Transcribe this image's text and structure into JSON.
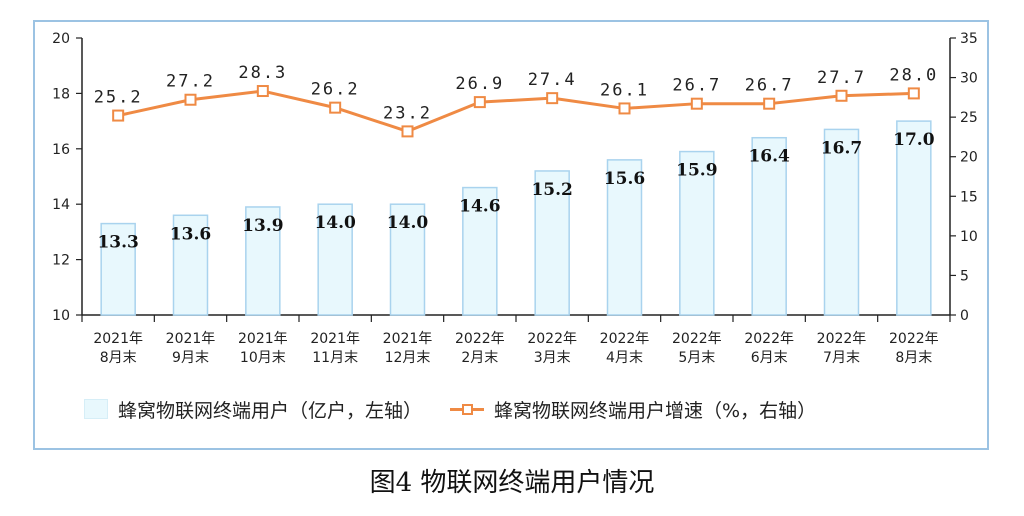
{
  "chart_data": {
    "type": "bar+line",
    "title": "图4 物联网终端用户情况",
    "categories": [
      [
        "2021年",
        "8月末"
      ],
      [
        "2021年",
        "9月末"
      ],
      [
        "2021年",
        "10月末"
      ],
      [
        "2021年",
        "11月末"
      ],
      [
        "2021年",
        "12月末"
      ],
      [
        "2022年",
        "2月末"
      ],
      [
        "2022年",
        "3月末"
      ],
      [
        "2022年",
        "4月末"
      ],
      [
        "2022年",
        "5月末"
      ],
      [
        "2022年",
        "6月末"
      ],
      [
        "2022年",
        "7月末"
      ],
      [
        "2022年",
        "8月末"
      ]
    ],
    "bar_series": {
      "name": "蜂窝物联网终端用户（亿户，左轴）",
      "values": [
        13.3,
        13.6,
        13.9,
        14.0,
        14.0,
        14.6,
        15.2,
        15.6,
        15.9,
        16.4,
        16.7,
        17.0
      ],
      "labels": [
        "13.3",
        "13.6",
        "13.9",
        "14.0",
        "14.0",
        "14.6",
        "15.2",
        "15.6",
        "15.9",
        "16.4",
        "16.7",
        "17.0"
      ],
      "axis": "left"
    },
    "line_series": {
      "name": "蜂窝物联网终端用户增速（%，右轴）",
      "values": [
        25.2,
        27.2,
        28.3,
        26.2,
        23.2,
        26.9,
        27.4,
        26.1,
        26.7,
        26.7,
        27.7,
        28.0
      ],
      "labels": [
        "25.2",
        "27.2",
        "28.3",
        "26.2",
        "23.2",
        "26.9",
        "27.4",
        "26.1",
        "26.7",
        "26.7",
        "27.7",
        "28.0"
      ],
      "axis": "right"
    },
    "left_axis": {
      "ylim": [
        10,
        20
      ],
      "ticks": [
        10,
        12,
        14,
        16,
        18,
        20
      ]
    },
    "right_axis": {
      "ylim": [
        0,
        35
      ],
      "ticks": [
        0,
        5,
        10,
        15,
        20,
        25,
        30,
        35
      ]
    },
    "grid": false,
    "legend_position": "bottom",
    "colors": {
      "bar_fill": "#e8f8fd",
      "bar_stroke": "#a9d3ee",
      "line": "#ef8a44",
      "frame": "#9cc3e3"
    }
  }
}
